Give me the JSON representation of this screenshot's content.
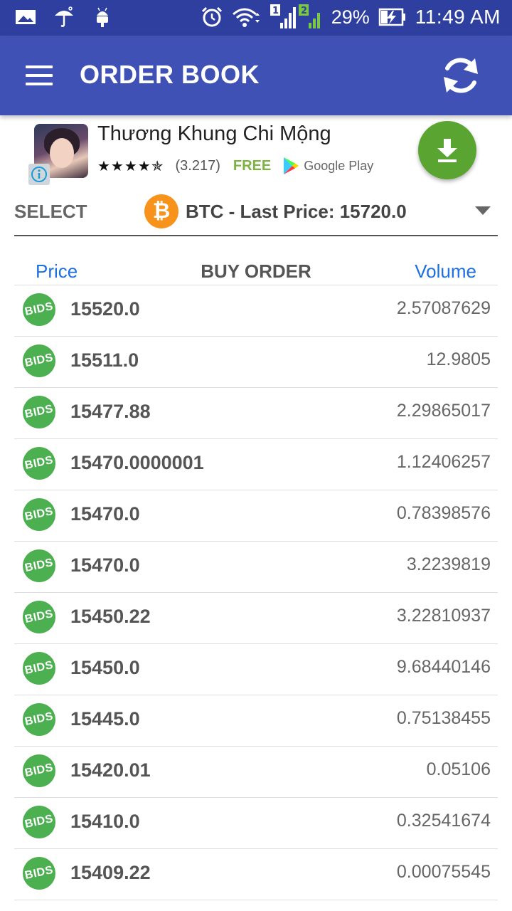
{
  "status_bar": {
    "battery": "29%",
    "time": "11:49 AM",
    "sim1": "1",
    "sim2": "2",
    "icons": [
      "image-icon",
      "umbrella-icon",
      "android-icon",
      "alarm-icon",
      "wifi-icon",
      "signal-icon",
      "battery-charging-icon"
    ]
  },
  "app_bar": {
    "title": "ORDER BOOK",
    "menu_icon": "hamburger-menu-icon",
    "refresh_icon": "refresh-icon"
  },
  "ad": {
    "title": "Thương Khung Chi Mộng",
    "stars": "★★★★✯",
    "rating_count": "(3.217)",
    "price": "FREE",
    "store": "Google Play",
    "store_icon": "google-play-icon",
    "download_icon": "download-icon",
    "info_icon": "info-icon"
  },
  "selector": {
    "label": "SELECT",
    "value": "BTC - Last Price: 15720.0",
    "coin_icon": "bitcoin-icon",
    "btc_symbol": "₿"
  },
  "table": {
    "price_header": "Price",
    "title": "BUY ORDER",
    "volume_header": "Volume",
    "badge": "BIDS",
    "colors": {
      "badge": "#4caf50",
      "header_link": "#1e6fe0"
    },
    "rows": [
      {
        "price": "15520.0",
        "volume": "2.57087629"
      },
      {
        "price": "15511.0",
        "volume": "12.9805"
      },
      {
        "price": "15477.88",
        "volume": "2.29865017"
      },
      {
        "price": "15470.0000001",
        "volume": "1.12406257"
      },
      {
        "price": "15470.0",
        "volume": "0.78398576"
      },
      {
        "price": "15470.0",
        "volume": "3.2239819"
      },
      {
        "price": "15450.22",
        "volume": "3.22810937"
      },
      {
        "price": "15450.0",
        "volume": "9.68440146"
      },
      {
        "price": "15445.0",
        "volume": "0.75138455"
      },
      {
        "price": "15420.01",
        "volume": "0.05106"
      },
      {
        "price": "15410.0",
        "volume": "0.32541674"
      },
      {
        "price": "15409.22",
        "volume": "0.00075545"
      }
    ]
  },
  "theme": {
    "status_bar": "#2f3fa0",
    "app_bar": "#3f51b5",
    "bitcoin": "#f7931a",
    "download": "#5aa532"
  }
}
